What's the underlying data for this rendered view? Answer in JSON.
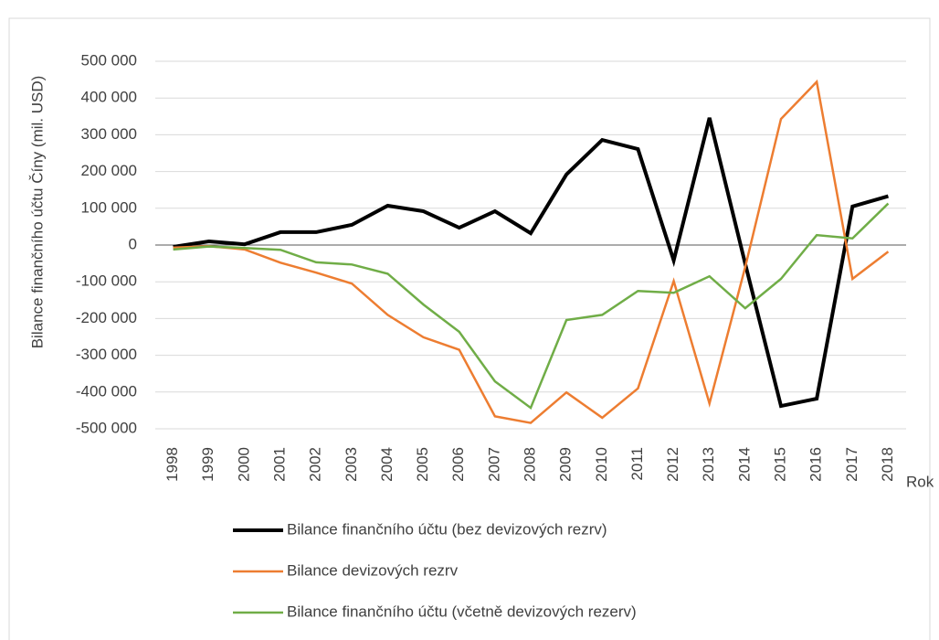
{
  "chart_data": {
    "type": "line",
    "y_label": "Bilance finančního účtu Číny (mil. USD)",
    "x_label": "Rok",
    "categories": [
      "1998",
      "1999",
      "2000",
      "2001",
      "2002",
      "2003",
      "2004",
      "2005",
      "2006",
      "2007",
      "2008",
      "2009",
      "2010",
      "2011",
      "2012",
      "2013",
      "2014",
      "2015",
      "2016",
      "2017",
      "2018"
    ],
    "series": [
      {
        "name": "Bilance finančního účtu (bez devizových rezrv)",
        "color": "#000000",
        "width": 4,
        "values": [
          -5000,
          10000,
          2000,
          35000,
          35000,
          55000,
          107000,
          92000,
          47000,
          92000,
          32000,
          192000,
          286000,
          261000,
          -42000,
          346000,
          -51000,
          -438000,
          -418000,
          105000,
          133000
        ]
      },
      {
        "name": "Bilance devizových rezrv",
        "color": "#ed7d31",
        "width": 2.5,
        "values": [
          -7000,
          -3000,
          -12000,
          -48000,
          -75000,
          -105000,
          -190000,
          -251000,
          -285000,
          -466000,
          -484000,
          -401000,
          -470000,
          -390000,
          -98000,
          -431000,
          -60000,
          343000,
          444000,
          -92000,
          -18000
        ]
      },
      {
        "name": "Bilance finančního účtu (včetně devizových rezerv)",
        "color": "#70ad47",
        "width": 2.5,
        "values": [
          -12000,
          -4000,
          -8000,
          -13000,
          -47000,
          -53000,
          -78000,
          -162000,
          -236000,
          -371000,
          -443000,
          -204000,
          -190000,
          -125000,
          -130000,
          -85000,
          -172000,
          -92000,
          27000,
          18000,
          113000
        ]
      }
    ],
    "ylim": [
      -500000,
      500000
    ],
    "yticks": [
      {
        "value": 500000,
        "label": "500 000"
      },
      {
        "value": 400000,
        "label": "400 000"
      },
      {
        "value": 300000,
        "label": "300 000"
      },
      {
        "value": 200000,
        "label": "200 000"
      },
      {
        "value": 100000,
        "label": "100 000"
      },
      0,
      {
        "value": -100000,
        "label": "-100 000"
      },
      {
        "value": -200000,
        "label": "-200 000"
      },
      {
        "value": -300000,
        "label": "-300 000"
      },
      {
        "value": -400000,
        "label": "-400 000"
      },
      {
        "value": -500000,
        "label": "-500 000"
      }
    ],
    "grid": true
  }
}
